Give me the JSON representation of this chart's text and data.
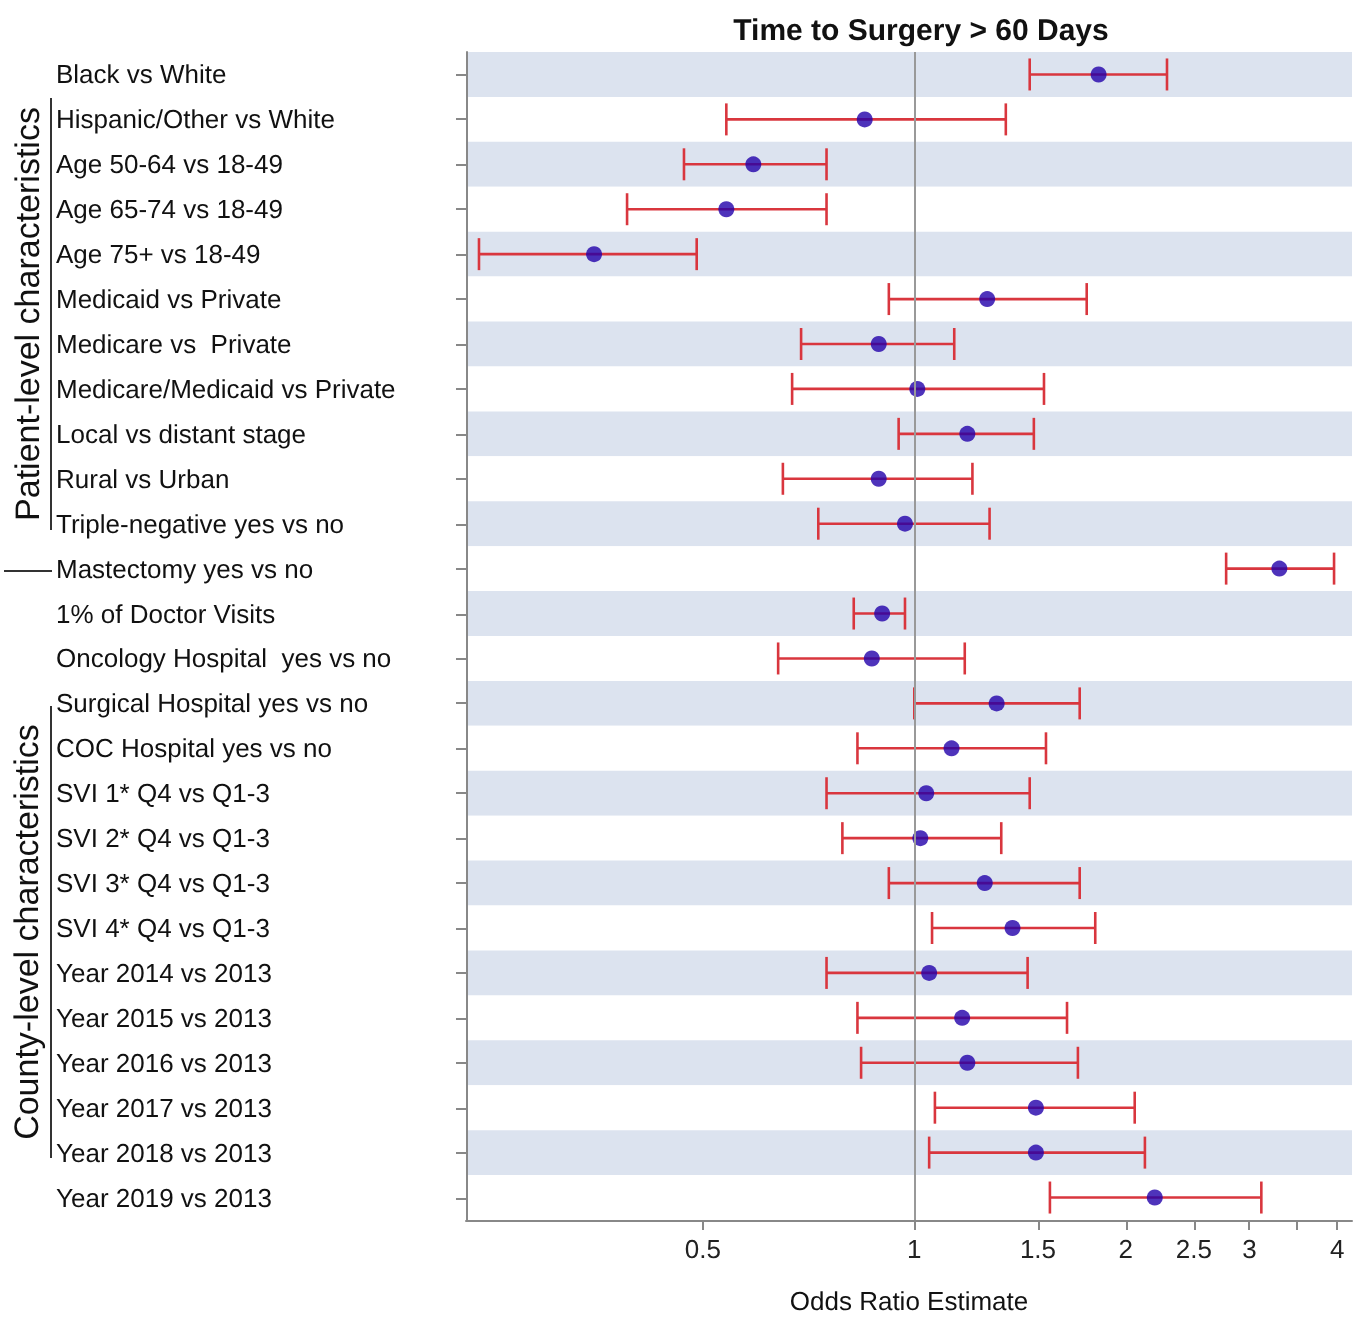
{
  "chart_data": {
    "type": "scatter",
    "title": "Time to Surgery > 60 Days",
    "xlabel": "Odds Ratio Estimate",
    "annotations": [
      "Patient-level characteristics",
      "County-level characteristics"
    ],
    "categories": [
      "Black vs White",
      "Hispanic/Other vs White",
      "Age 50-64 vs 18-49",
      "Age 65-74 vs 18-49",
      "Age 75+ vs 18-49",
      "Medicaid vs Private",
      "Medicare vs  Private",
      "Medicare/Medicaid vs Private",
      "Local vs distant stage",
      "Rural vs Urban",
      "Triple-negative yes vs no",
      "Mastectomy yes vs no",
      "1% of Doctor Visits",
      "Oncology Hospital  yes vs no",
      "Surgical Hospital yes vs no",
      "COC Hospital yes vs no",
      "SVI 1* Q4 vs Q1-3",
      "SVI 2* Q4 vs Q1-3",
      "SVI 3* Q4 vs Q1-3",
      "SVI 4* Q4 vs Q1-3",
      "Year 2014 vs 2013",
      "Year 2015 vs 2013",
      "Year 2016 vs 2013",
      "Year 2017 vs 2013",
      "Year 2018 vs 2013",
      "Year 2019 vs 2013"
    ],
    "series": [
      {
        "color": "#2200aa",
        "values": [
          1.83,
          0.85,
          0.59,
          0.54,
          0.35,
          1.27,
          0.89,
          1.01,
          1.19,
          0.89,
          0.97,
          3.31,
          0.9,
          0.87,
          1.31,
          1.13,
          1.04,
          1.02,
          1.26,
          1.38,
          1.05,
          1.17,
          1.19,
          1.49,
          1.49,
          2.2
        ],
        "errors": [
          [
            1.46,
            2.29
          ],
          [
            0.54,
            1.35
          ],
          [
            0.47,
            0.75
          ],
          [
            0.39,
            0.75
          ],
          [
            0.24,
            0.49
          ],
          [
            0.92,
            1.76
          ],
          [
            0.69,
            1.14
          ],
          [
            0.67,
            1.53
          ],
          [
            0.95,
            1.48
          ],
          [
            0.65,
            1.21
          ],
          [
            0.73,
            1.28
          ],
          [
            2.78,
            3.96
          ],
          [
            0.82,
            0.97
          ],
          [
            0.64,
            1.18
          ],
          [
            1.0,
            1.72
          ],
          [
            0.83,
            1.54
          ],
          [
            0.75,
            1.46
          ],
          [
            0.79,
            1.33
          ],
          [
            0.92,
            1.72
          ],
          [
            1.06,
            1.81
          ],
          [
            0.75,
            1.45
          ],
          [
            0.83,
            1.65
          ],
          [
            0.84,
            1.71
          ],
          [
            1.07,
            2.06
          ],
          [
            1.05,
            2.13
          ],
          [
            1.56,
            3.12
          ]
        ]
      }
    ],
    "xlim": [
      0.23,
      4.2
    ],
    "xticks": [
      0.5,
      1,
      1.5,
      2,
      2.5,
      3,
      {
        "value": 3.5,
        "label": null
      },
      4
    ],
    "log": "x",
    "ref_lines": [
      {
        "axis": "x",
        "value": 1,
        "color": "#999999"
      }
    ],
    "marker": "circle",
    "legend": false,
    "grid": false,
    "orientation": "horizontal"
  }
}
